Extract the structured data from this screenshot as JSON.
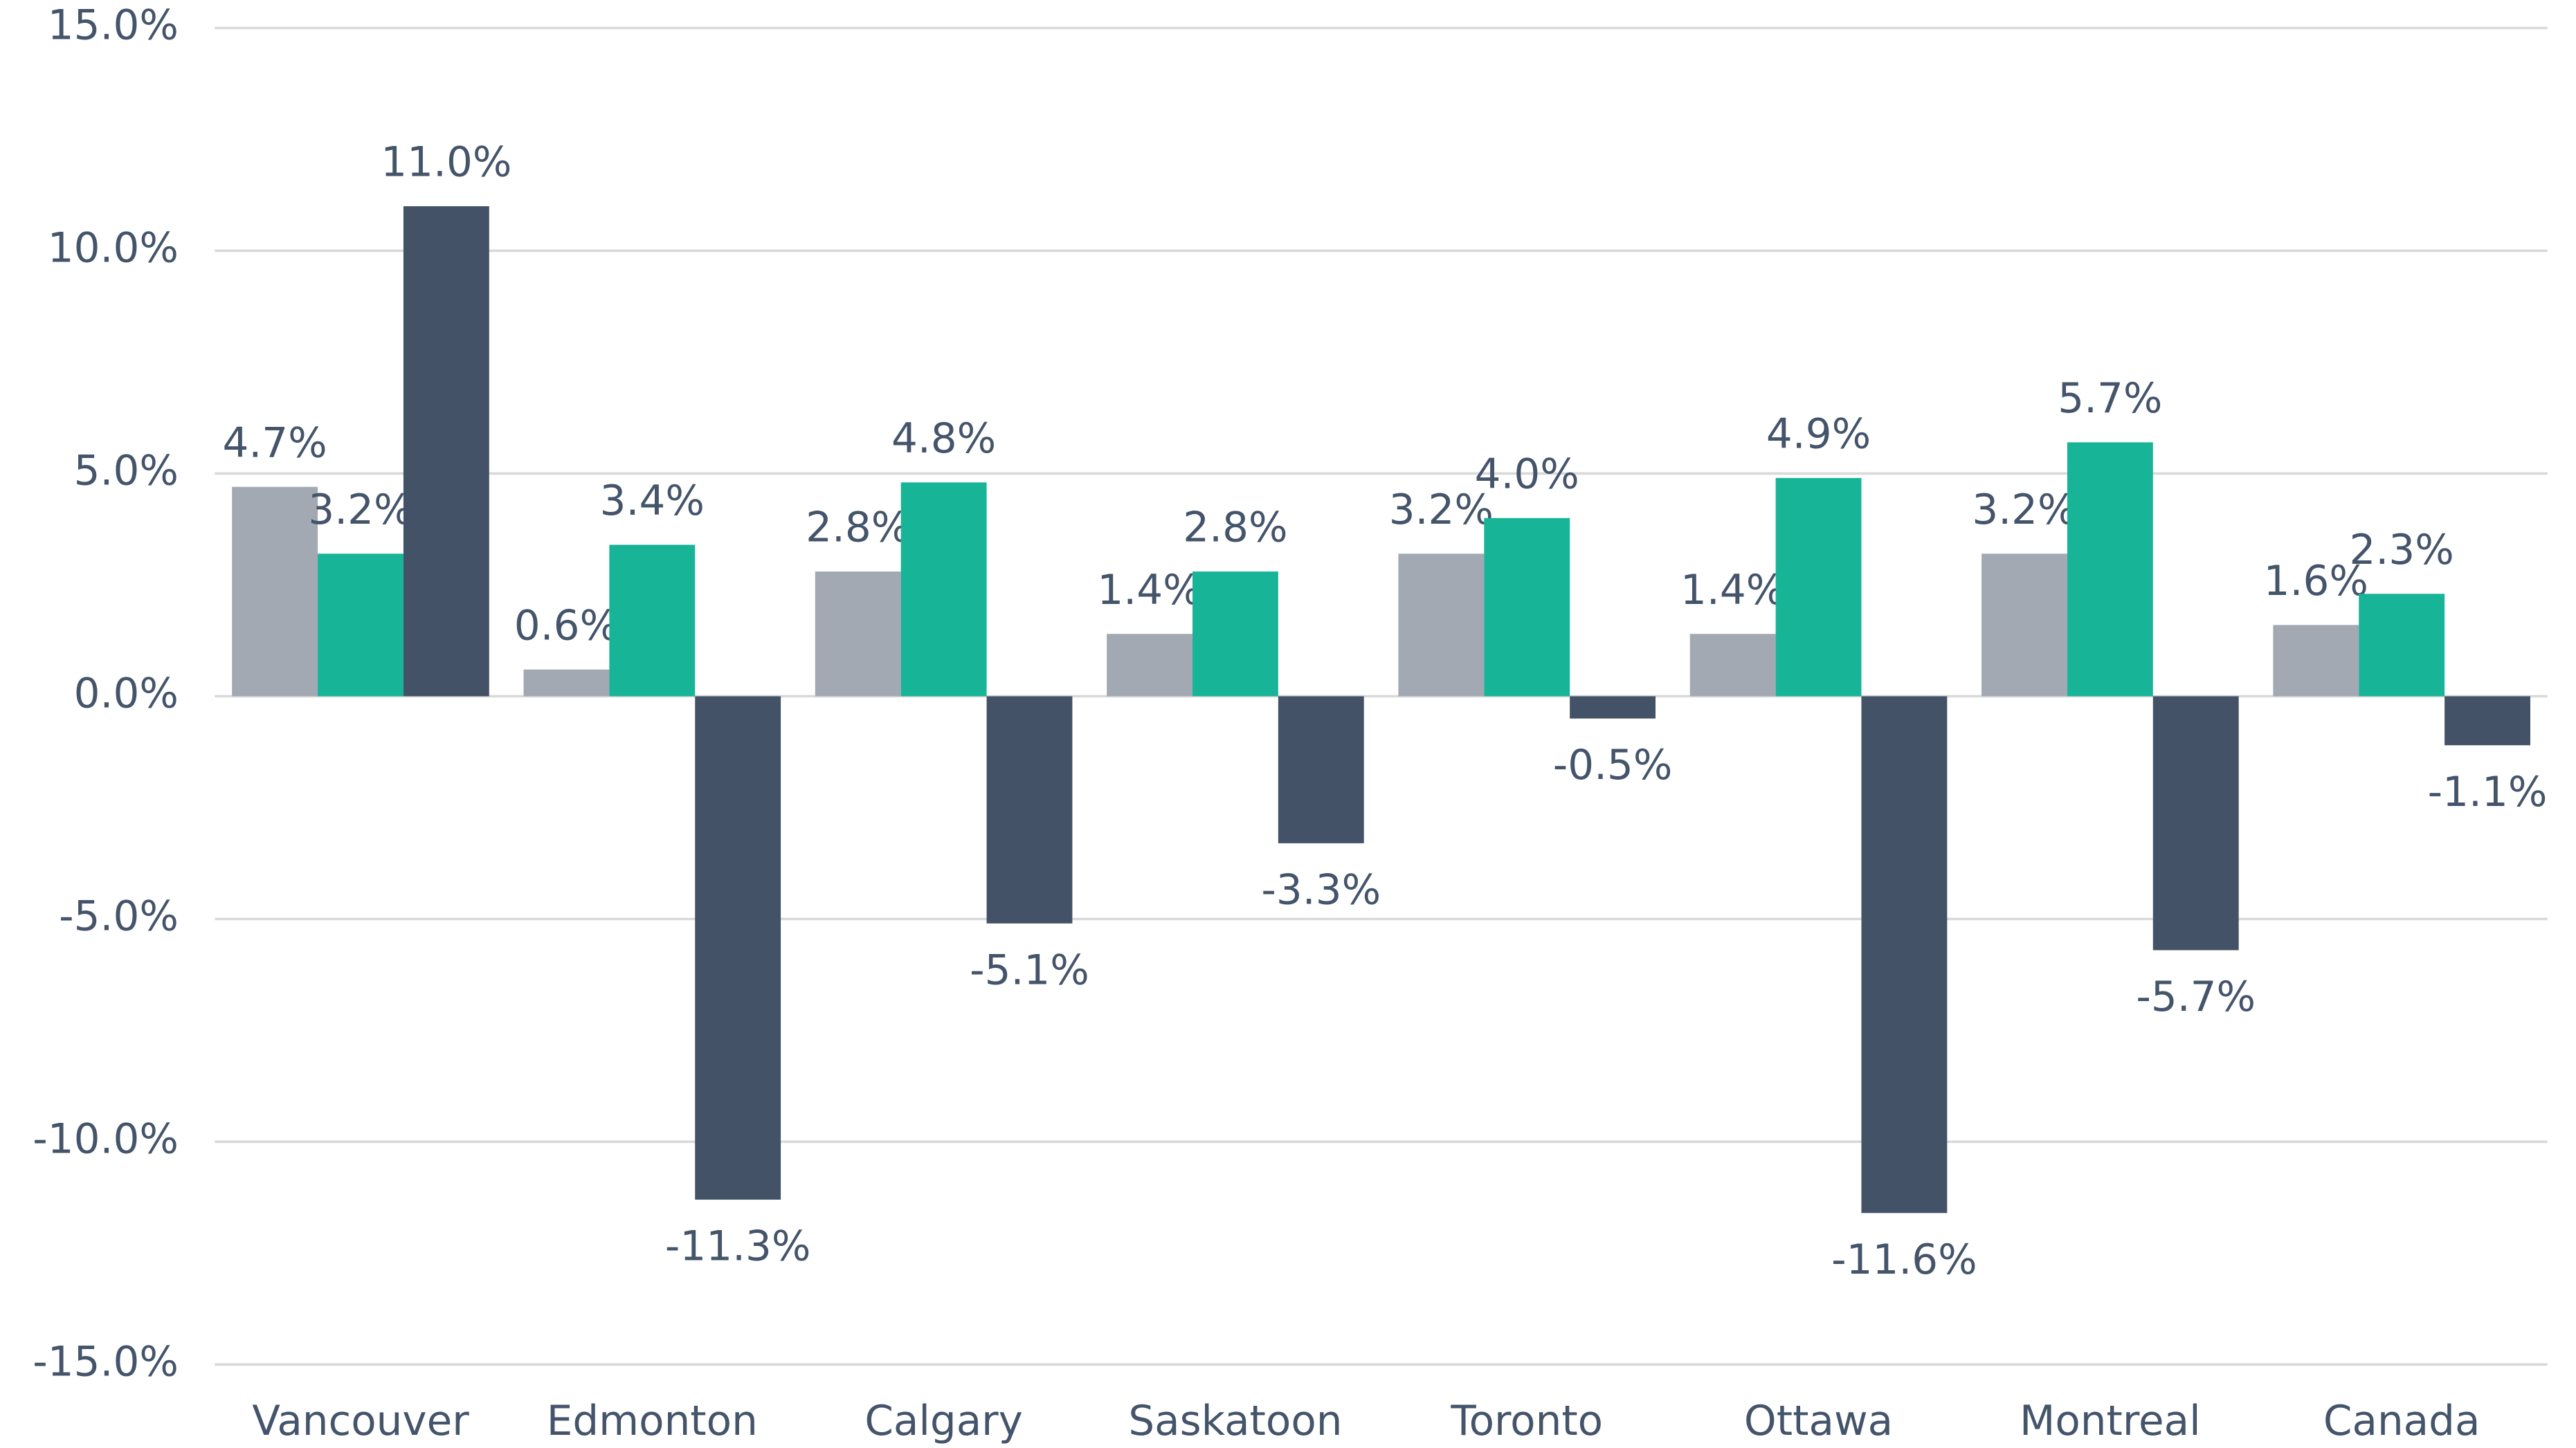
{
  "chart_data": {
    "type": "bar",
    "categories": [
      "Vancouver",
      "Edmonton",
      "Calgary",
      "Saskatoon",
      "Toronto",
      "Ottawa",
      "Montreal",
      "Canada"
    ],
    "series": [
      {
        "color": "#a2a9b2",
        "values": [
          4.7,
          0.6,
          2.8,
          1.4,
          3.2,
          1.4,
          3.2,
          1.6
        ],
        "value_labels": [
          "4.7%",
          "0.6%",
          "2.8%",
          "1.4%",
          "3.2%",
          "1.4%",
          "3.2%",
          "1.6%"
        ]
      },
      {
        "color": "#17b497",
        "values": [
          3.2,
          3.4,
          4.8,
          2.8,
          4.0,
          4.9,
          5.7,
          2.3
        ],
        "value_labels": [
          "3.2%",
          "3.4%",
          "4.8%",
          "2.8%",
          "4.0%",
          "4.9%",
          "5.7%",
          "2.3%"
        ]
      },
      {
        "color": "#435266",
        "values": [
          11.0,
          -11.3,
          -5.1,
          -3.3,
          -0.5,
          -11.6,
          -5.7,
          -1.1
        ],
        "value_labels": [
          "11.0%",
          "-11.3%",
          "-5.1%",
          "-3.3%",
          "-0.5%",
          "-11.6%",
          "-5.7%",
          "-1.1%"
        ]
      }
    ],
    "ylim": [
      -15,
      15
    ],
    "yticks": [
      {
        "value": -15,
        "label": "-15.0%"
      },
      {
        "value": -10,
        "label": "-10.0%"
      },
      {
        "value": -5,
        "label": "-5.0%"
      },
      {
        "value": 0,
        "label": "0.0%"
      },
      {
        "value": 5,
        "label": "5.0%"
      },
      {
        "value": 10,
        "label": "10.0%"
      },
      {
        "value": 15,
        "label": "15.0%"
      }
    ],
    "grid": true
  }
}
